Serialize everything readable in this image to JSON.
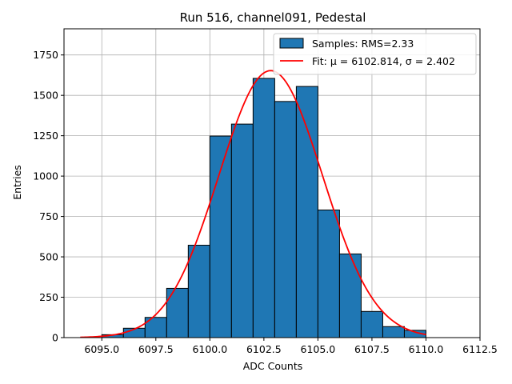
{
  "chart_data": {
    "type": "bar",
    "title": "Run 516, channel091, Pedestal",
    "xlabel": "ADC Counts",
    "ylabel": "Entries",
    "xlim": [
      6093.25,
      6112.5
    ],
    "ylim": [
      0,
      1912
    ],
    "grid": true,
    "legend_position": "top-right",
    "x_ticks": [
      "6095.0",
      "6097.5",
      "6100.0",
      "6102.5",
      "6105.0",
      "6107.5",
      "6110.0",
      "6112.5"
    ],
    "x_tick_values": [
      6095.0,
      6097.5,
      6100.0,
      6102.5,
      6105.0,
      6107.5,
      6110.0,
      6112.5
    ],
    "y_ticks": [
      "0",
      "250",
      "500",
      "750",
      "1000",
      "1250",
      "1500",
      "1750"
    ],
    "y_tick_values": [
      0,
      250,
      500,
      750,
      1000,
      1250,
      1500,
      1750
    ],
    "histogram": {
      "name": "Samples: RMS=2.33",
      "bin_edges": [
        6095,
        6096,
        6097,
        6098,
        6099,
        6100,
        6101,
        6102,
        6103,
        6104,
        6105,
        6106,
        6107,
        6108,
        6109,
        6110
      ],
      "counts": [
        18,
        58,
        125,
        305,
        572,
        1248,
        1322,
        1605,
        1462,
        1555,
        790,
        518,
        162,
        68,
        45
      ],
      "color": "#1f77b4"
    },
    "fit": {
      "name": "Fit: μ = 6102.814, σ = 2.402",
      "mu": 6102.814,
      "sigma": 2.402,
      "amplitude": 1653,
      "x_range": [
        6094,
        6110
      ],
      "color": "#ff0000"
    }
  }
}
